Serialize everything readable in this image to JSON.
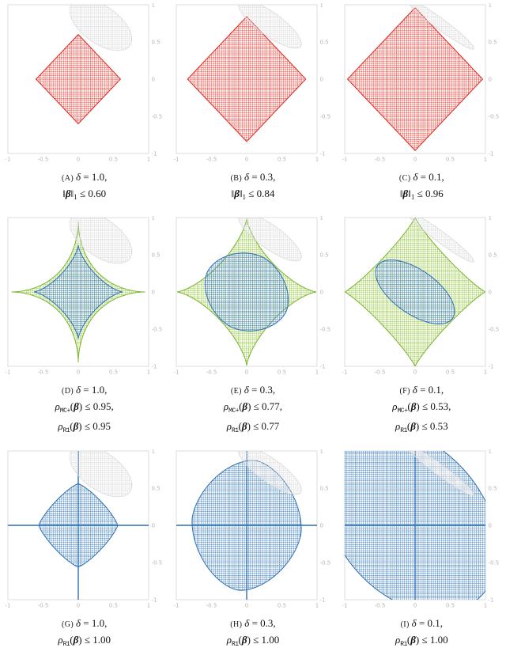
{
  "palette": {
    "red": {
      "hatch": "#ef3b33",
      "stroke": "#e0251b"
    },
    "green": {
      "hatch": "#94c83d",
      "stroke": "#7ab32e"
    },
    "blue": {
      "hatch": "#3f7fc1",
      "stroke": "#2e6fb2"
    },
    "gray": {
      "hatch": "#d9d9d9",
      "stroke": "#d6d6d6"
    }
  },
  "axes": {
    "xlim": [
      -1,
      1
    ],
    "ylim": [
      -1,
      1
    ],
    "tick_values": [
      -1,
      -0.5,
      0,
      0.5,
      1
    ],
    "tick_labels": [
      "-1",
      "-0.5",
      "0",
      "0.5",
      "1"
    ]
  },
  "chart_data": [
    {
      "panel": "A",
      "type": "region-plot",
      "delta": 1.0,
      "constraints": {
        "l1_radius": 0.6
      },
      "regions": [
        {
          "kind": "superellipse",
          "cx": 0,
          "cy": 0,
          "a": 0.6,
          "b": 0.6,
          "p": 1,
          "angle": 0,
          "color": "red"
        },
        {
          "kind": "superellipse",
          "cx": 0.32,
          "cy": 0.73,
          "a": 0.5,
          "b": 0.255,
          "p": 2,
          "angle": -33,
          "color": "gray"
        }
      ],
      "caption": [
        [
          {
            "t": "(A) ",
            "s": "caps"
          },
          {
            "t": "δ",
            "s": "i"
          },
          {
            "t": " = 1.0,",
            "s": "r"
          }
        ],
        [
          {
            "t": "‖",
            "s": "r"
          },
          {
            "t": "β",
            "s": "bi"
          },
          {
            "t": "‖",
            "s": "r"
          },
          {
            "t": "1",
            "s": "sub"
          },
          {
            "t": " ≤ 0.60",
            "s": "r"
          }
        ]
      ]
    },
    {
      "panel": "B",
      "type": "region-plot",
      "delta": 0.3,
      "constraints": {
        "l1_radius": 0.84
      },
      "regions": [
        {
          "kind": "superellipse",
          "cx": 0,
          "cy": 0,
          "a": 0.84,
          "b": 0.84,
          "p": 1,
          "angle": 0,
          "color": "red"
        },
        {
          "kind": "superellipse",
          "cx": 0.33,
          "cy": 0.74,
          "a": 0.53,
          "b": 0.16,
          "p": 2,
          "angle": -34,
          "color": "gray"
        }
      ],
      "caption": [
        [
          {
            "t": "(B) ",
            "s": "caps"
          },
          {
            "t": "δ",
            "s": "i"
          },
          {
            "t": " = 0.3,",
            "s": "r"
          }
        ],
        [
          {
            "t": "‖",
            "s": "r"
          },
          {
            "t": "β",
            "s": "bi"
          },
          {
            "t": "‖",
            "s": "r"
          },
          {
            "t": "1",
            "s": "sub"
          },
          {
            "t": " ≤ 0.84",
            "s": "r"
          }
        ]
      ]
    },
    {
      "panel": "C",
      "type": "region-plot",
      "delta": 0.1,
      "constraints": {
        "l1_radius": 0.96
      },
      "regions": [
        {
          "kind": "superellipse",
          "cx": 0,
          "cy": 0,
          "a": 0.96,
          "b": 0.96,
          "p": 1,
          "angle": 0,
          "color": "red"
        },
        {
          "kind": "superellipse",
          "cx": 0.36,
          "cy": 0.74,
          "a": 0.58,
          "b": 0.075,
          "p": 2,
          "angle": -35,
          "color": "gray"
        }
      ],
      "caption": [
        [
          {
            "t": "(C) ",
            "s": "caps"
          },
          {
            "t": "δ",
            "s": "i"
          },
          {
            "t": " = 0.1,",
            "s": "r"
          }
        ],
        [
          {
            "t": "‖",
            "s": "r"
          },
          {
            "t": "β",
            "s": "bi"
          },
          {
            "t": "‖",
            "s": "r"
          },
          {
            "t": "1",
            "s": "sub"
          },
          {
            "t": " ≤ 0.96",
            "s": "r"
          }
        ]
      ]
    },
    {
      "panel": "D",
      "type": "region-plot",
      "delta": 1.0,
      "constraints": {
        "mcplus_level": 0.95,
        "r1_level": 0.95
      },
      "regions": [
        {
          "kind": "superellipse",
          "cx": 0,
          "cy": 0,
          "a": 0.95,
          "b": 0.95,
          "p": 0.55,
          "angle": 0,
          "color": "green"
        },
        {
          "kind": "superellipse",
          "cx": 0,
          "cy": 0,
          "a": 0.63,
          "b": 0.63,
          "p": 0.72,
          "angle": 0,
          "color": "blue"
        },
        {
          "kind": "superellipse",
          "cx": 0.32,
          "cy": 0.73,
          "a": 0.5,
          "b": 0.255,
          "p": 2,
          "angle": -33,
          "color": "gray"
        }
      ],
      "caption": [
        [
          {
            "t": "(D) ",
            "s": "caps"
          },
          {
            "t": "δ",
            "s": "i"
          },
          {
            "t": " = 1.0,",
            "s": "r"
          }
        ],
        [
          {
            "t": "ρ",
            "s": "i"
          },
          {
            "t": "MC+",
            "s": "subtt"
          },
          {
            "t": "(",
            "s": "r"
          },
          {
            "t": "β",
            "s": "bi"
          },
          {
            "t": ") ≤ 0.95,",
            "s": "r"
          }
        ],
        [
          {
            "t": "ρ",
            "s": "i"
          },
          {
            "t": "R1",
            "s": "subtt"
          },
          {
            "t": "(",
            "s": "r"
          },
          {
            "t": "β",
            "s": "bi"
          },
          {
            "t": ") ≤ 0.95",
            "s": "r"
          }
        ]
      ]
    },
    {
      "panel": "E",
      "type": "region-plot",
      "delta": 0.3,
      "constraints": {
        "mcplus_level": 0.77,
        "r1_level": 0.77
      },
      "regions": [
        {
          "kind": "superellipse",
          "cx": 0,
          "cy": 0,
          "a": 0.99,
          "b": 0.99,
          "p": 0.72,
          "angle": 0,
          "color": "green"
        },
        {
          "kind": "superellipse",
          "cx": 0,
          "cy": 0,
          "a": 0.62,
          "b": 0.52,
          "p": 1.8,
          "angle": -25,
          "color": "blue"
        },
        {
          "kind": "superellipse",
          "cx": 0.33,
          "cy": 0.74,
          "a": 0.53,
          "b": 0.16,
          "p": 2,
          "angle": -34,
          "color": "gray"
        }
      ],
      "caption": [
        [
          {
            "t": "(E) ",
            "s": "caps"
          },
          {
            "t": "δ",
            "s": "i"
          },
          {
            "t": " = 0.3,",
            "s": "r"
          }
        ],
        [
          {
            "t": "ρ",
            "s": "i"
          },
          {
            "t": "MC+",
            "s": "subtt"
          },
          {
            "t": "(",
            "s": "r"
          },
          {
            "t": "β",
            "s": "bi"
          },
          {
            "t": ") ≤ 0.77,",
            "s": "r"
          }
        ],
        [
          {
            "t": "ρ",
            "s": "i"
          },
          {
            "t": "R1",
            "s": "subtt"
          },
          {
            "t": "(",
            "s": "r"
          },
          {
            "t": "β",
            "s": "bi"
          },
          {
            "t": ") ≤ 0.77",
            "s": "r"
          }
        ]
      ]
    },
    {
      "panel": "F",
      "type": "region-plot",
      "delta": 0.1,
      "constraints": {
        "mcplus_level": 0.53,
        "r1_level": 0.53
      },
      "regions": [
        {
          "kind": "superellipse",
          "cx": 0,
          "cy": 0,
          "a": 1.0,
          "b": 1.0,
          "p": 0.88,
          "angle": 0,
          "color": "green"
        },
        {
          "kind": "superellipse",
          "cx": 0,
          "cy": 0,
          "a": 0.64,
          "b": 0.3,
          "p": 2,
          "angle": -33,
          "color": "blue"
        },
        {
          "kind": "superellipse",
          "cx": 0.36,
          "cy": 0.74,
          "a": 0.58,
          "b": 0.075,
          "p": 2,
          "angle": -35,
          "color": "gray"
        }
      ],
      "caption": [
        [
          {
            "t": "(F) ",
            "s": "caps"
          },
          {
            "t": "δ",
            "s": "i"
          },
          {
            "t": " = 0.1,",
            "s": "r"
          }
        ],
        [
          {
            "t": "ρ",
            "s": "i"
          },
          {
            "t": "MC+",
            "s": "subtt"
          },
          {
            "t": "(",
            "s": "r"
          },
          {
            "t": "β",
            "s": "bi"
          },
          {
            "t": ") ≤ 0.53,",
            "s": "r"
          }
        ],
        [
          {
            "t": "ρ",
            "s": "i"
          },
          {
            "t": "R1",
            "s": "subtt"
          },
          {
            "t": "(",
            "s": "r"
          },
          {
            "t": "β",
            "s": "bi"
          },
          {
            "t": ") ≤ 0.53",
            "s": "r"
          }
        ]
      ]
    },
    {
      "panel": "G",
      "type": "region-plot",
      "delta": 1.0,
      "constraints": {
        "r1_level": 1.0
      },
      "regions": [
        {
          "kind": "cross",
          "len": 1.0,
          "color": "blue"
        },
        {
          "kind": "superellipse",
          "cx": 0,
          "cy": 0,
          "a": 0.56,
          "b": 0.56,
          "p": 1.25,
          "angle": 0,
          "color": "blue"
        },
        {
          "kind": "superellipse",
          "cx": 0.32,
          "cy": 0.73,
          "a": 0.5,
          "b": 0.255,
          "p": 2,
          "angle": -33,
          "color": "gray"
        }
      ],
      "caption": [
        [
          {
            "t": "(G) ",
            "s": "caps"
          },
          {
            "t": "δ",
            "s": "i"
          },
          {
            "t": " = 1.0,",
            "s": "r"
          }
        ],
        [
          {
            "t": "ρ",
            "s": "i"
          },
          {
            "t": "R1",
            "s": "subtt"
          },
          {
            "t": "(",
            "s": "r"
          },
          {
            "t": "β",
            "s": "bi"
          },
          {
            "t": ") ≤ 1.00",
            "s": "r"
          }
        ]
      ]
    },
    {
      "panel": "H",
      "type": "region-plot",
      "delta": 0.3,
      "constraints": {
        "r1_level": 1.0
      },
      "regions": [
        {
          "kind": "cross",
          "len": 1.0,
          "color": "blue"
        },
        {
          "kind": "superellipse",
          "cx": 0,
          "cy": 0,
          "a": 0.78,
          "b": 0.88,
          "p": 1.7,
          "angle": -8,
          "color": "blue"
        },
        {
          "kind": "superellipse",
          "cx": 0.33,
          "cy": 0.74,
          "a": 0.53,
          "b": 0.16,
          "p": 2,
          "angle": -34,
          "color": "gray"
        }
      ],
      "caption": [
        [
          {
            "t": "(H) ",
            "s": "caps"
          },
          {
            "t": "δ",
            "s": "i"
          },
          {
            "t": " = 0.3,",
            "s": "r"
          }
        ],
        [
          {
            "t": "ρ",
            "s": "i"
          },
          {
            "t": "R1",
            "s": "subtt"
          },
          {
            "t": "(",
            "s": "r"
          },
          {
            "t": "β",
            "s": "bi"
          },
          {
            "t": ") ≤ 1.00",
            "s": "r"
          }
        ]
      ]
    },
    {
      "panel": "I",
      "type": "region-plot",
      "delta": 0.1,
      "constraints": {
        "r1_level": 1.0
      },
      "regions": [
        {
          "kind": "cross",
          "len": 1.0,
          "color": "blue"
        },
        {
          "kind": "superellipse",
          "cx": -0.06,
          "cy": 0.06,
          "a": 1.42,
          "b": 1.02,
          "p": 2.0,
          "angle": 135,
          "color": "blue"
        },
        {
          "kind": "superellipse",
          "cx": 0.36,
          "cy": 0.74,
          "a": 0.58,
          "b": 0.075,
          "p": 2,
          "angle": -35,
          "color": "gray"
        }
      ],
      "caption": [
        [
          {
            "t": "(I) ",
            "s": "caps"
          },
          {
            "t": "δ",
            "s": "i"
          },
          {
            "t": " = 0.1,",
            "s": "r"
          }
        ],
        [
          {
            "t": "ρ",
            "s": "i"
          },
          {
            "t": "R1",
            "s": "subtt"
          },
          {
            "t": "(",
            "s": "r"
          },
          {
            "t": "β",
            "s": "bi"
          },
          {
            "t": ") ≤ 1.00",
            "s": "r"
          }
        ]
      ]
    }
  ]
}
